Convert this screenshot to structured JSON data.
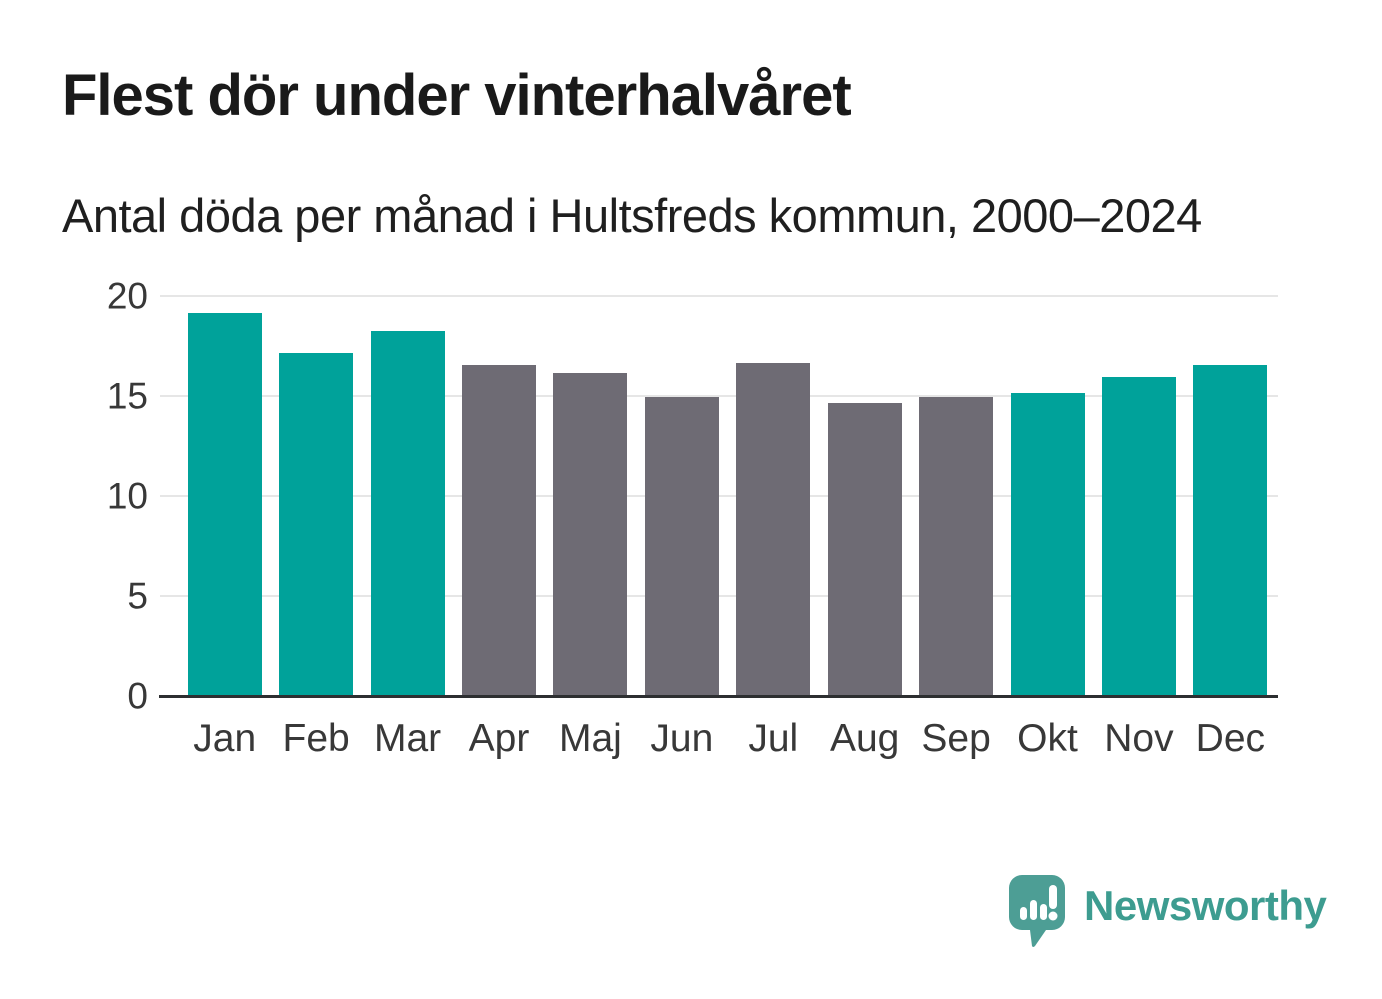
{
  "header": {
    "title": "Flest dör under vinterhalvåret",
    "subtitle": "Antal döda per månad i Hultsfreds kommun, 2000–2024"
  },
  "chart_data": {
    "type": "bar",
    "title": "Flest dör under vinterhalvåret",
    "subtitle": "Antal döda per månad i Hultsfreds kommun, 2000–2024",
    "categories": [
      "Jan",
      "Feb",
      "Mar",
      "Apr",
      "Maj",
      "Jun",
      "Jul",
      "Aug",
      "Sep",
      "Okt",
      "Nov",
      "Dec"
    ],
    "values": [
      19.1,
      17.1,
      18.2,
      16.5,
      16.1,
      14.9,
      16.6,
      14.6,
      14.9,
      15.1,
      15.9,
      16.5
    ],
    "series_colors": [
      "#00a29a",
      "#00a29a",
      "#00a29a",
      "#6e6b74",
      "#6e6b74",
      "#6e6b74",
      "#6e6b74",
      "#6e6b74",
      "#6e6b74",
      "#00a29a",
      "#00a29a",
      "#00a29a"
    ],
    "colors": {
      "winter_teal": "#00a29a",
      "summer_gray": "#6e6b74",
      "gridline": "#e6e6e6",
      "axis_line": "#2d2f31"
    },
    "xlabel": "",
    "ylabel": "",
    "ylim": [
      0,
      20
    ],
    "yticks": [
      0,
      5,
      10,
      15,
      20
    ],
    "grid": true,
    "legend": false
  },
  "footer": {
    "brand": "Newsworthy",
    "brand_text_color": "#3d9c90",
    "logo_icon": "bar-chart-speech-bubble-icon",
    "logo_color": "#4d9e95"
  }
}
